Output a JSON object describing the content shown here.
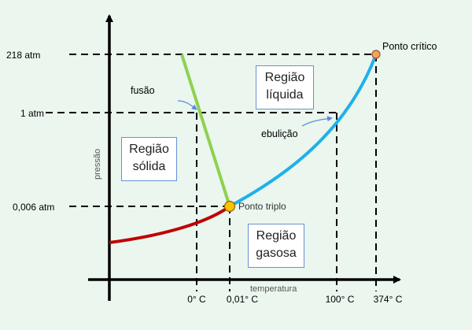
{
  "axes": {
    "x_label": "temperatura",
    "y_label": "pressão"
  },
  "y_ticks": [
    "218 atm",
    "1 atm",
    "0,006 atm"
  ],
  "x_ticks": [
    "0° C",
    "0,01° C",
    "100° C",
    "374° C"
  ],
  "curve_labels": {
    "fusion": "fusão",
    "boiling": "ebulição"
  },
  "points": {
    "triple": "Ponto triplo",
    "critical": "Ponto crítico"
  },
  "regions": {
    "solid": [
      "Região",
      "sólida"
    ],
    "liquid": [
      "Região",
      "líquida"
    ],
    "gas": [
      "Região",
      "gasosa"
    ]
  },
  "colors": {
    "background": "#eaf6ee",
    "solid_gas_curve": "#c00000",
    "fusion_curve": "#8fd14f",
    "boiling_curve": "#1fb0ec",
    "triple_point": "#ffc000",
    "critical_point": "#f4a460",
    "region_box_border": "#6a8fd6"
  }
}
